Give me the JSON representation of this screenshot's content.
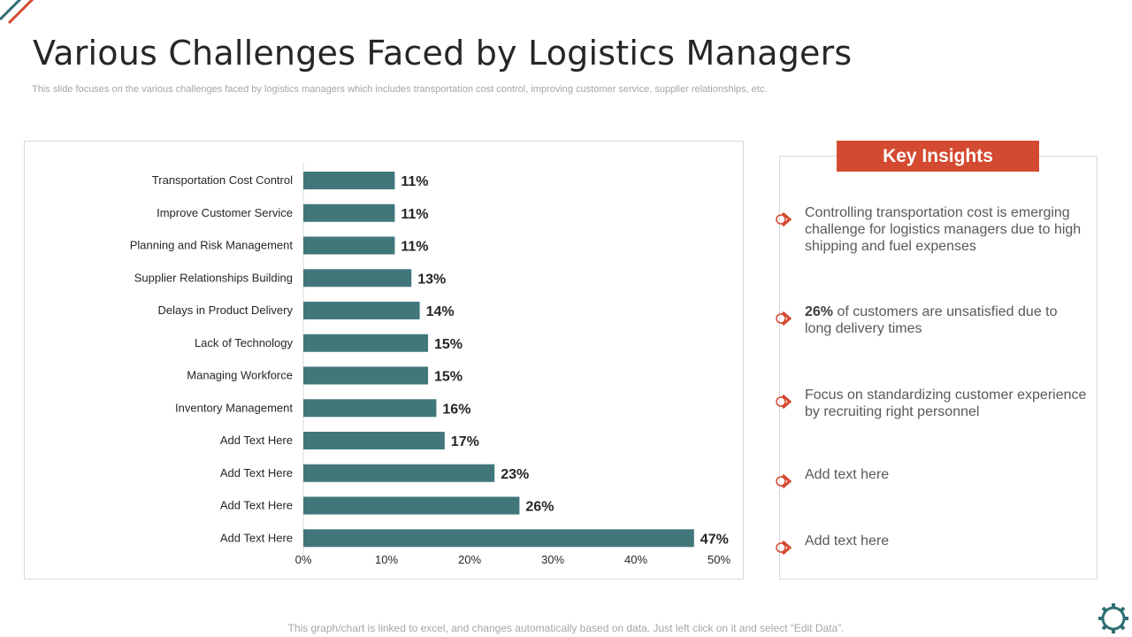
{
  "title": "Various Challenges Faced by Logistics Managers",
  "subtitle": "This slide focuses on the various challenges faced by logistics managers which includes transportation cost control, improving customer service, supplier relationships, etc.",
  "chart_data": {
    "type": "bar",
    "orientation": "horizontal",
    "categories": [
      "Transportation Cost Control",
      "Improve Customer Service",
      "Planning and Risk Management",
      "Supplier Relationships Building",
      "Delays in Product Delivery",
      "Lack of Technology",
      "Managing Workforce",
      "Inventory Management",
      "Add Text Here",
      "Add Text Here",
      "Add Text Here",
      "Add Text Here"
    ],
    "values": [
      11,
      11,
      11,
      13,
      14,
      15,
      15,
      16,
      17,
      23,
      26,
      47
    ],
    "value_labels": [
      "11%",
      "11%",
      "11%",
      "13%",
      "14%",
      "15%",
      "15%",
      "16%",
      "17%",
      "23%",
      "26%",
      "47%"
    ],
    "xlim": [
      0,
      50
    ],
    "xticks": [
      0,
      10,
      20,
      30,
      40,
      50
    ],
    "xtick_labels": [
      "0%",
      "10%",
      "20%",
      "30%",
      "40%",
      "50%"
    ],
    "bar_color": "#41777b",
    "grid": false
  },
  "insights": {
    "header": "Key Insights",
    "items": [
      {
        "bold": "",
        "text": "Controlling transportation cost is emerging challenge for logistics managers due to high shipping and fuel expenses"
      },
      {
        "bold": "26%",
        "text": " of customers are unsatisfied due to long delivery times"
      },
      {
        "bold": "",
        "text": "Focus on standardizing customer experience by recruiting right personnel"
      },
      {
        "bold": "",
        "text": "Add text here"
      },
      {
        "bold": "",
        "text": "Add text here"
      }
    ]
  },
  "footer": "This graph/chart is linked to excel,  and changes automatically based on data. Just left click on it and select “Edit Data”.",
  "colors": {
    "accent": "#d44a30",
    "bar": "#41777b",
    "corner_teal": "#2e6e73"
  }
}
